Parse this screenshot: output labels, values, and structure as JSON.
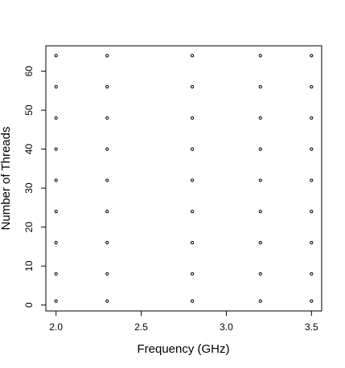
{
  "chart_data": {
    "type": "scatter",
    "x_label": "Frequency (GHz)",
    "y_label": "Number of Threads",
    "x": [
      2.0,
      2.0,
      2.0,
      2.0,
      2.0,
      2.0,
      2.0,
      2.0,
      2.0,
      2.3,
      2.3,
      2.3,
      2.3,
      2.3,
      2.3,
      2.3,
      2.3,
      2.3,
      2.8,
      2.8,
      2.8,
      2.8,
      2.8,
      2.8,
      2.8,
      2.8,
      2.8,
      3.2,
      3.2,
      3.2,
      3.2,
      3.2,
      3.2,
      3.2,
      3.2,
      3.2,
      3.5,
      3.5,
      3.5,
      3.5,
      3.5,
      3.5,
      3.5,
      3.5,
      3.5
    ],
    "values": [
      1,
      8,
      16,
      24,
      32,
      40,
      48,
      56,
      64,
      1,
      8,
      16,
      24,
      32,
      40,
      48,
      56,
      64,
      1,
      8,
      16,
      24,
      32,
      40,
      48,
      56,
      64,
      1,
      8,
      16,
      24,
      32,
      40,
      48,
      56,
      64,
      1,
      8,
      16,
      24,
      32,
      40,
      48,
      56,
      64
    ],
    "color": "#000000",
    "xlim": [
      1.94,
      3.56
    ],
    "ylim": [
      -1.52,
      66.52
    ],
    "xticks": [
      {
        "value": 2,
        "label": "2.0"
      },
      {
        "value": 2.5,
        "label": "2.5"
      },
      {
        "value": 3,
        "label": "3.0"
      },
      {
        "value": 3.5,
        "label": "3.5"
      }
    ],
    "yticks": [
      0,
      10,
      20,
      30,
      40,
      50,
      60
    ]
  }
}
